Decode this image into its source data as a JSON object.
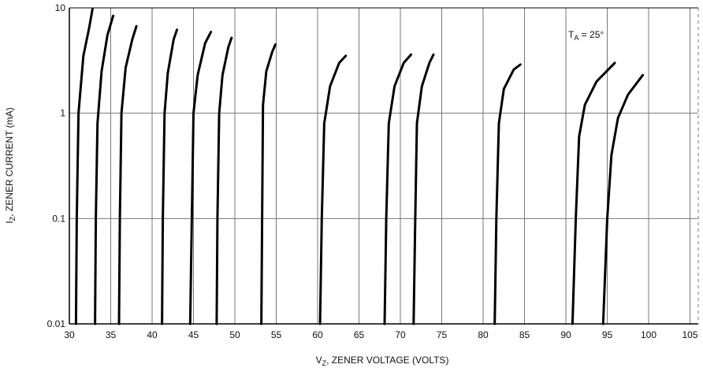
{
  "chart_data": {
    "type": "line",
    "title": "",
    "xlabel": "V_Z, ZENER VOLTAGE (VOLTS)",
    "xlabel_parts": {
      "prefix": "V",
      "sub": "Z",
      "rest": ", ZENER VOLTAGE (VOLTS)"
    },
    "ylabel": "I_Z, ZENER CURRENT (mA)",
    "ylabel_parts": {
      "prefix": "I",
      "sub": "Z",
      "rest": ", ZENER CURRENT (mA)"
    },
    "x_ticks": [
      30,
      35,
      40,
      45,
      50,
      55,
      60,
      65,
      70,
      75,
      80,
      85,
      90,
      95,
      100,
      105
    ],
    "x_tick_labels": [
      "30",
      "35",
      "40",
      "45",
      "50",
      "55",
      "60",
      "65",
      "70",
      "75",
      "80",
      "85",
      "90",
      "95",
      "100",
      "105"
    ],
    "y_ticks": [
      0.01,
      0.1,
      1,
      10
    ],
    "y_tick_labels": [
      "0.01",
      "0.1",
      "1",
      "10"
    ],
    "xlim": [
      30,
      106
    ],
    "ylim": [
      0.01,
      10
    ],
    "yscale": "log",
    "grid": true,
    "legend": "none",
    "annotation": {
      "prefix": "T",
      "sub": "A",
      "rest": " = 25°"
    },
    "series": [
      {
        "values": [
          [
            30.8,
            0.01
          ],
          [
            30.9,
            0.1
          ],
          [
            31.1,
            1
          ],
          [
            31.7,
            3.5
          ],
          [
            32.4,
            6.5
          ],
          [
            32.8,
            9.8
          ]
        ]
      },
      {
        "values": [
          [
            33.1,
            0.01
          ],
          [
            33.2,
            0.1
          ],
          [
            33.4,
            0.8
          ],
          [
            33.9,
            2.5
          ],
          [
            34.6,
            5.5
          ],
          [
            35.3,
            8.4
          ]
        ]
      },
      {
        "values": [
          [
            36.0,
            0.01
          ],
          [
            36.1,
            0.1
          ],
          [
            36.3,
            1
          ],
          [
            36.8,
            2.7
          ],
          [
            37.6,
            5.0
          ],
          [
            38.1,
            6.7
          ]
        ]
      },
      {
        "values": [
          [
            41.2,
            0.01
          ],
          [
            41.3,
            0.1
          ],
          [
            41.5,
            1
          ],
          [
            41.9,
            2.4
          ],
          [
            42.6,
            5.0
          ],
          [
            43.0,
            6.2
          ]
        ]
      },
      {
        "values": [
          [
            44.6,
            0.01
          ],
          [
            44.8,
            0.1
          ],
          [
            45.0,
            1
          ],
          [
            45.5,
            2.3
          ],
          [
            46.4,
            4.6
          ],
          [
            47.1,
            5.9
          ]
        ]
      },
      {
        "values": [
          [
            47.8,
            0.01
          ],
          [
            47.9,
            0.1
          ],
          [
            48.1,
            1
          ],
          [
            48.5,
            2.3
          ],
          [
            49.2,
            4.2
          ],
          [
            49.6,
            5.2
          ]
        ]
      },
      {
        "values": [
          [
            53.2,
            0.01
          ],
          [
            53.3,
            0.1
          ],
          [
            53.4,
            1.2
          ],
          [
            53.8,
            2.5
          ],
          [
            54.5,
            3.8
          ],
          [
            54.9,
            4.5
          ]
        ]
      },
      {
        "values": [
          [
            60.3,
            0.01
          ],
          [
            60.5,
            0.1
          ],
          [
            60.8,
            0.8
          ],
          [
            61.5,
            1.8
          ],
          [
            62.6,
            3.0
          ],
          [
            63.4,
            3.5
          ]
        ]
      },
      {
        "values": [
          [
            68.1,
            0.01
          ],
          [
            68.3,
            0.1
          ],
          [
            68.6,
            0.8
          ],
          [
            69.3,
            1.8
          ],
          [
            70.4,
            3.0
          ],
          [
            71.3,
            3.6
          ]
        ]
      },
      {
        "values": [
          [
            71.6,
            0.01
          ],
          [
            71.8,
            0.1
          ],
          [
            72.0,
            0.8
          ],
          [
            72.6,
            1.8
          ],
          [
            73.5,
            3.0
          ],
          [
            74.0,
            3.6
          ]
        ]
      },
      {
        "values": [
          [
            81.4,
            0.01
          ],
          [
            81.6,
            0.1
          ],
          [
            81.9,
            0.8
          ],
          [
            82.5,
            1.7
          ],
          [
            83.7,
            2.6
          ],
          [
            84.5,
            2.9
          ]
        ]
      },
      {
        "values": [
          [
            90.8,
            0.01
          ],
          [
            91.2,
            0.1
          ],
          [
            91.6,
            0.6
          ],
          [
            92.3,
            1.2
          ],
          [
            93.7,
            2.0
          ],
          [
            95.9,
            3.0
          ]
        ]
      },
      {
        "values": [
          [
            94.5,
            0.01
          ],
          [
            95.0,
            0.1
          ],
          [
            95.5,
            0.4
          ],
          [
            96.3,
            0.9
          ],
          [
            97.5,
            1.5
          ],
          [
            99.3,
            2.3
          ]
        ]
      }
    ]
  }
}
